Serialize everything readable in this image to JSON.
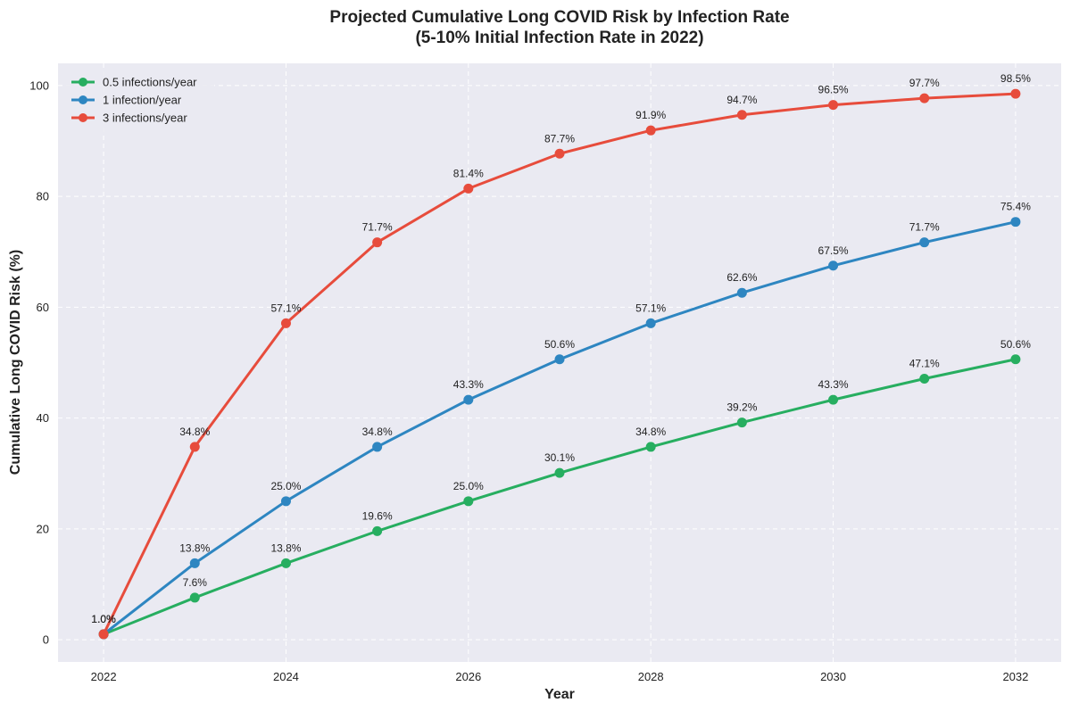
{
  "chart_data": {
    "type": "line",
    "title_line1": "Projected Cumulative Long COVID Risk by Infection Rate",
    "title_line2": "(5-10% Initial Infection Rate in 2022)",
    "xlabel": "Year",
    "ylabel": "Cumulative Long COVID Risk (%)",
    "x": [
      2022,
      2023,
      2024,
      2025,
      2026,
      2027,
      2028,
      2029,
      2030,
      2031,
      2032
    ],
    "xlim": [
      2021.5,
      2032.5
    ],
    "ylim": [
      -4,
      104
    ],
    "x_ticks": [
      2022,
      2024,
      2026,
      2028,
      2030,
      2032
    ],
    "x_tick_labels": [
      "2022",
      "2024",
      "2026",
      "2028",
      "2030",
      "2032"
    ],
    "y_ticks": [
      0,
      20,
      40,
      60,
      80,
      100
    ],
    "y_tick_labels": [
      "0",
      "20",
      "40",
      "60",
      "80",
      "100"
    ],
    "grid": true,
    "legend_position": "top-left",
    "series": [
      {
        "name": "0.5 infections/year",
        "color": "#27ae60",
        "values": [
          1.0,
          7.6,
          13.8,
          19.6,
          25.0,
          30.1,
          34.8,
          39.2,
          43.3,
          47.1,
          50.6
        ],
        "labels": [
          "1.0%",
          "7.6%",
          "13.8%",
          "19.6%",
          "25.0%",
          "30.1%",
          "34.8%",
          "39.2%",
          "43.3%",
          "47.1%",
          "50.6%"
        ]
      },
      {
        "name": "1 infection/year",
        "color": "#2e86c1",
        "values": [
          1.0,
          13.8,
          25.0,
          34.8,
          43.3,
          50.6,
          57.1,
          62.6,
          67.5,
          71.7,
          75.4
        ],
        "labels": [
          "1.0%",
          "13.8%",
          "25.0%",
          "34.8%",
          "43.3%",
          "50.6%",
          "57.1%",
          "62.6%",
          "67.5%",
          "71.7%",
          "75.4%"
        ]
      },
      {
        "name": "3 infections/year",
        "color": "#e74c3c",
        "values": [
          1.0,
          34.8,
          57.1,
          71.7,
          81.4,
          87.7,
          91.9,
          94.7,
          96.5,
          97.7,
          98.5
        ],
        "labels": [
          "1.0%",
          "34.8%",
          "57.1%",
          "71.7%",
          "81.4%",
          "87.7%",
          "91.9%",
          "94.7%",
          "96.5%",
          "97.7%",
          "98.5%"
        ]
      }
    ]
  }
}
